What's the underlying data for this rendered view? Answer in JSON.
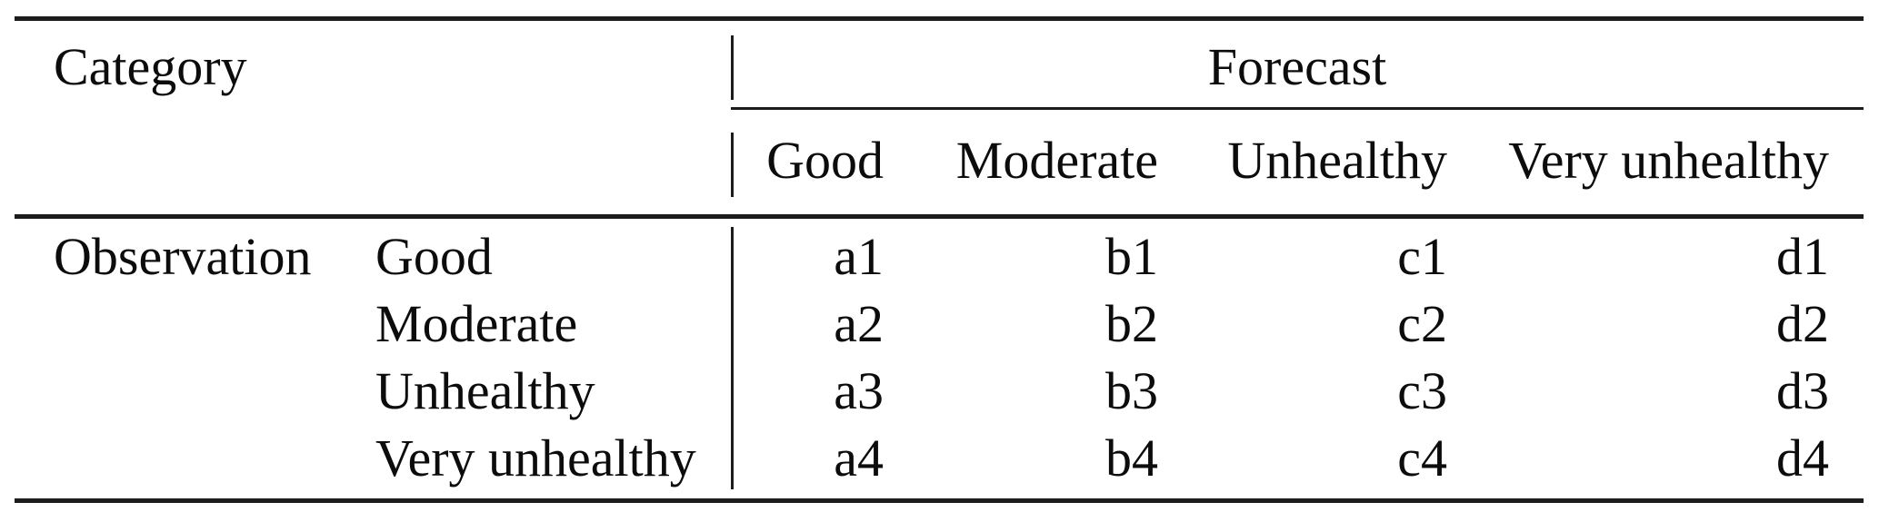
{
  "figure": {
    "kind": "contingency-table",
    "corner_header": "Category",
    "column_group_header": "Forecast",
    "row_group_header": "Observation",
    "column_headers": [
      "Good",
      "Moderate",
      "Unhealthy",
      "Very unhealthy"
    ],
    "rows": [
      {
        "label": "Good",
        "values": [
          "a1",
          "b1",
          "c1",
          "d1"
        ]
      },
      {
        "label": "Moderate",
        "values": [
          "a2",
          "b2",
          "c2",
          "d2"
        ]
      },
      {
        "label": "Unhealthy",
        "values": [
          "a3",
          "b3",
          "c3",
          "d3"
        ]
      },
      {
        "label": "Very unhealthy",
        "values": [
          "a4",
          "b4",
          "c4",
          "d4"
        ]
      }
    ]
  },
  "chart_data": {
    "type": "table",
    "title": "",
    "corner_label": "Category",
    "column_group": "Forecast",
    "row_group": "Observation",
    "columns": [
      "Good",
      "Moderate",
      "Unhealthy",
      "Very unhealthy"
    ],
    "row_labels": [
      "Good",
      "Moderate",
      "Unhealthy",
      "Very unhealthy"
    ],
    "cells": [
      [
        "a1",
        "b1",
        "c1",
        "d1"
      ],
      [
        "a2",
        "b2",
        "c2",
        "d2"
      ],
      [
        "a3",
        "b3",
        "c3",
        "d3"
      ],
      [
        "a4",
        "b4",
        "c4",
        "d4"
      ]
    ]
  },
  "colors": {
    "background": "#ffffff",
    "text": "#0c0c0c",
    "rule": "#1c1c1c"
  }
}
